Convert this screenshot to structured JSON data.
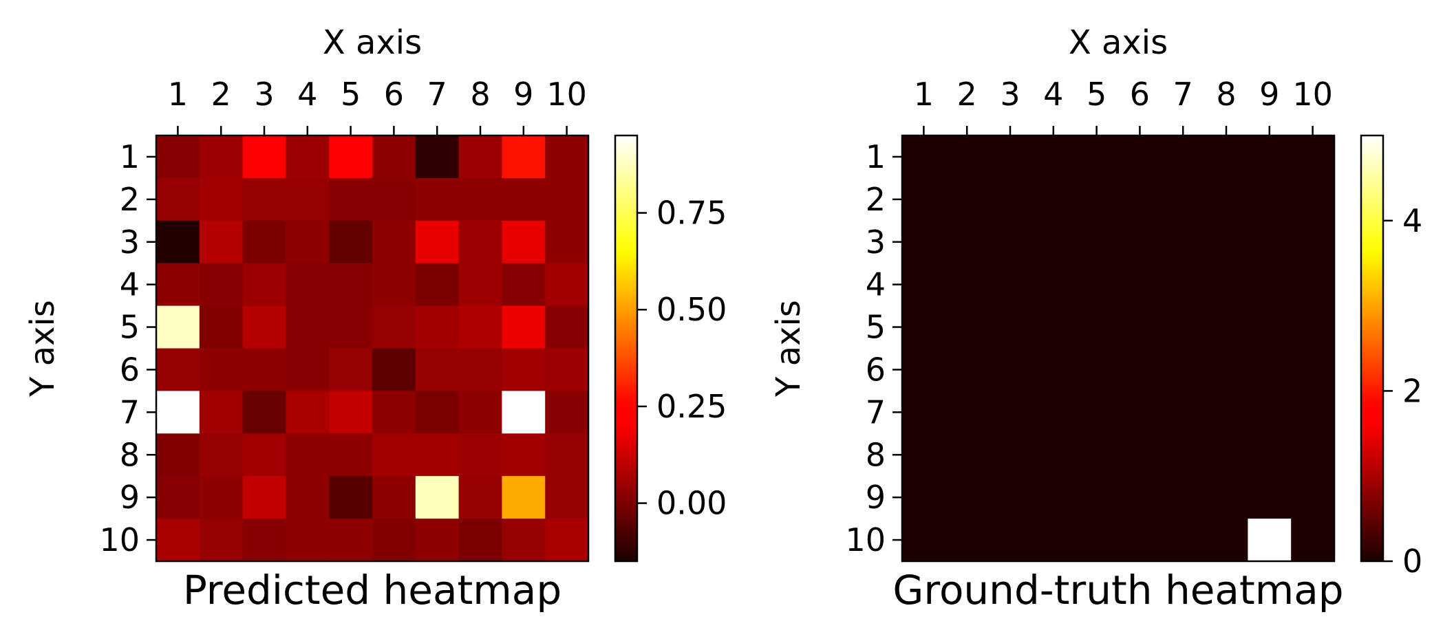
{
  "chart_data": [
    {
      "type": "heatmap",
      "title": "Predicted heatmap",
      "xlabel": "X axis",
      "ylabel": "Y axis",
      "x_ticks": [
        "1",
        "2",
        "3",
        "4",
        "5",
        "6",
        "7",
        "8",
        "9",
        "10"
      ],
      "y_ticks": [
        "1",
        "2",
        "3",
        "4",
        "5",
        "6",
        "7",
        "8",
        "9",
        "10"
      ],
      "colormap": "hot",
      "vmin": -0.15,
      "vmax": 0.95,
      "colorbar_ticks": [
        0.0,
        0.25,
        0.5,
        0.75
      ],
      "colorbar_tick_labels": [
        "0.00",
        "0.25",
        "0.50",
        "0.75"
      ],
      "values": [
        [
          0.02,
          0.05,
          0.22,
          0.05,
          0.21,
          0.03,
          -0.12,
          0.05,
          0.28,
          0.03
        ],
        [
          0.04,
          0.06,
          0.04,
          0.04,
          0.02,
          0.02,
          0.03,
          0.03,
          0.03,
          0.03
        ],
        [
          -0.14,
          0.09,
          0.0,
          0.03,
          -0.04,
          0.03,
          0.17,
          0.05,
          0.17,
          0.03
        ],
        [
          0.03,
          0.02,
          0.05,
          0.02,
          0.02,
          0.03,
          0.0,
          0.05,
          0.02,
          0.06
        ],
        [
          0.88,
          0.01,
          0.09,
          0.02,
          0.02,
          0.04,
          0.06,
          0.08,
          0.18,
          0.02
        ],
        [
          0.04,
          0.03,
          0.03,
          0.02,
          0.04,
          -0.05,
          0.04,
          0.04,
          0.06,
          0.05
        ],
        [
          0.95,
          0.06,
          -0.03,
          0.07,
          0.11,
          0.03,
          0.0,
          0.03,
          0.95,
          0.02
        ],
        [
          0.01,
          0.04,
          0.06,
          0.03,
          0.03,
          0.06,
          0.06,
          0.05,
          0.06,
          0.04
        ],
        [
          0.02,
          0.03,
          0.11,
          0.03,
          -0.06,
          0.03,
          0.87,
          0.04,
          0.52,
          0.04
        ],
        [
          0.07,
          0.04,
          0.02,
          0.03,
          0.03,
          0.01,
          0.03,
          0.0,
          0.04,
          0.07
        ]
      ]
    },
    {
      "type": "heatmap",
      "title": "Ground-truth heatmap",
      "xlabel": "X axis",
      "ylabel": "Y axis",
      "x_ticks": [
        "1",
        "2",
        "3",
        "4",
        "5",
        "6",
        "7",
        "8",
        "9",
        "10"
      ],
      "y_ticks": [
        "1",
        "2",
        "3",
        "4",
        "5",
        "6",
        "7",
        "8",
        "9",
        "10"
      ],
      "colormap": "hot",
      "vmin": 0,
      "vmax": 5,
      "colorbar_ticks": [
        0,
        2,
        4
      ],
      "colorbar_tick_labels": [
        "0",
        "2",
        "4"
      ],
      "values": [
        [
          0,
          0,
          0,
          0,
          0,
          0,
          0,
          0,
          0,
          0
        ],
        [
          0,
          0,
          0,
          0,
          0,
          0,
          0,
          0,
          0,
          0
        ],
        [
          0,
          0,
          0,
          0,
          0,
          0,
          0,
          0,
          0,
          0
        ],
        [
          0,
          0,
          0,
          0,
          0,
          0,
          0,
          0,
          0,
          0
        ],
        [
          0,
          0,
          0,
          0,
          0,
          0,
          0,
          0,
          0,
          0
        ],
        [
          0,
          0,
          0,
          0,
          0,
          0,
          0,
          0,
          0,
          0
        ],
        [
          0,
          0,
          0,
          0,
          0,
          0,
          0,
          0,
          0,
          0
        ],
        [
          0,
          0,
          0,
          0,
          0,
          0,
          0,
          0,
          0,
          0
        ],
        [
          0,
          0,
          0,
          0,
          0,
          0,
          0,
          0,
          0,
          0
        ],
        [
          0,
          0,
          0,
          0,
          0,
          0,
          0,
          0,
          5,
          0
        ]
      ]
    }
  ]
}
